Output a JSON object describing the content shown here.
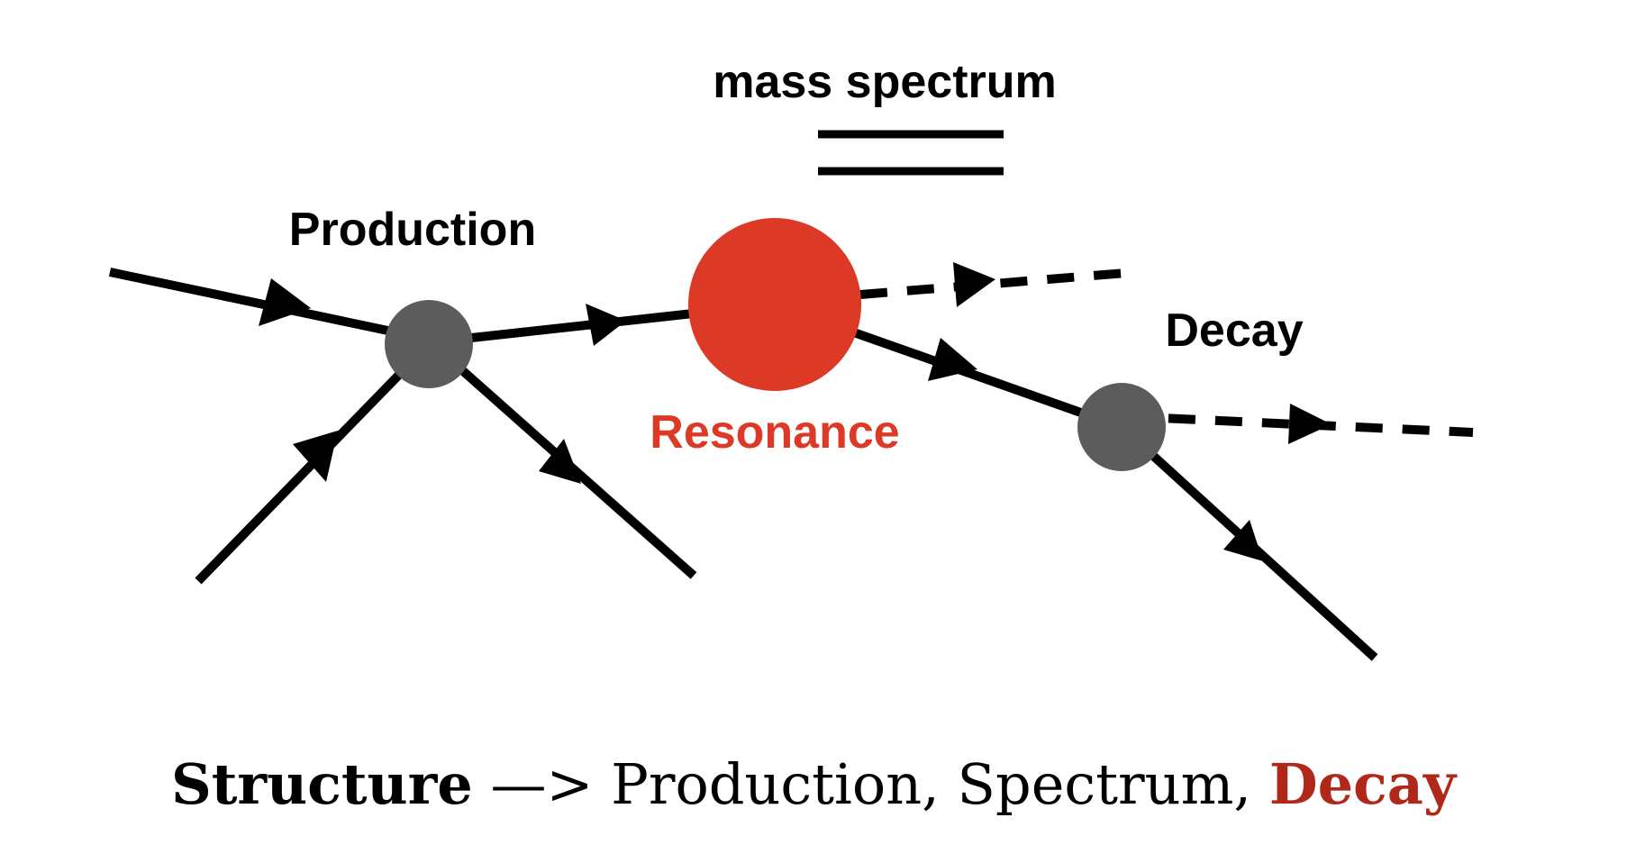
{
  "labels": {
    "mass_spectrum": "mass spectrum",
    "production": "Production",
    "resonance": "Resonance",
    "decay": "Decay"
  },
  "caption": {
    "structure": "Structure",
    "arrow": "—>",
    "list": "Production, Spectrum,",
    "decay": "Decay"
  },
  "colors": {
    "line": "#000000",
    "vertex": "#5c5c5c",
    "resonance": "#dc3a26",
    "resonance_label": "#dc3a26",
    "caption_decay": "#b0281a"
  }
}
